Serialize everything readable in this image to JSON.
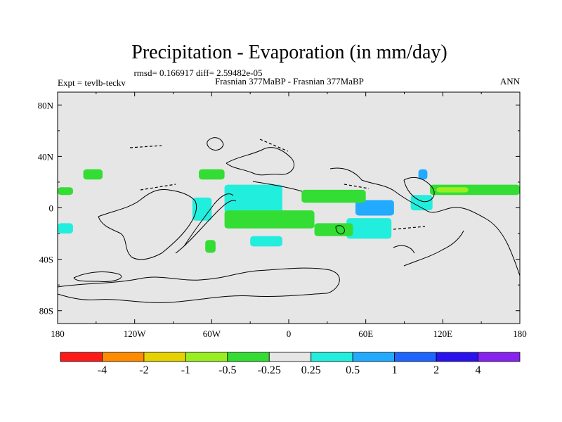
{
  "header": {
    "title": "Precipitation - Evaporation (in mm/day)",
    "stats": "rmsd= 0.166917 diff= 2.59482e-05",
    "left_label": "Expt = tevlb-teckv",
    "center_label": "Frasnian 377MaBP - Frasnian 377MaBP",
    "right_label": "ANN"
  },
  "chart_data": {
    "type": "heatmap",
    "xlim": [
      -180,
      180
    ],
    "ylim": [
      -90,
      90
    ],
    "lat_ticks": [
      "80N",
      "40N",
      "0",
      "40S",
      "80S"
    ],
    "lat_tick_values": [
      80,
      40,
      0,
      -40,
      -80
    ],
    "lon_ticks": [
      "180",
      "120W",
      "60W",
      "0",
      "60E",
      "120E",
      "180"
    ],
    "lon_tick_values": [
      -180,
      -120,
      -60,
      0,
      60,
      120,
      180
    ],
    "colorbar": {
      "colors": [
        "#ff1a1a",
        "#ff8c00",
        "#e6d200",
        "#99ee22",
        "#33dd33",
        "#e6e6e6",
        "#22eedd",
        "#22aaff",
        "#1e64ff",
        "#2a12ee",
        "#8822ee"
      ],
      "labels": [
        "-4",
        "-2",
        "-1",
        "-0.5",
        "-0.25",
        "0.25",
        "0.5",
        "1",
        "2",
        "4"
      ]
    },
    "background_color": "#e6e6e6",
    "anomaly_regions": [
      {
        "level": "0.25 to 0.5",
        "lon": [
          -180,
          -168
        ],
        "lat": [
          -20,
          -12
        ]
      },
      {
        "level": "0.25 to 0.5",
        "lon": [
          -75,
          -60
        ],
        "lat": [
          -10,
          8
        ]
      },
      {
        "level": "0.25 to 0.5",
        "lon": [
          -50,
          -5
        ],
        "lat": [
          -4,
          18
        ]
      },
      {
        "level": "0.25 to 0.5",
        "lon": [
          -30,
          -5
        ],
        "lat": [
          -30,
          -22
        ]
      },
      {
        "level": "0.25 to 0.5",
        "lon": [
          45,
          80
        ],
        "lat": [
          -24,
          -8
        ]
      },
      {
        "level": "0.25 to 0.5",
        "lon": [
          95,
          112
        ],
        "lat": [
          -2,
          10
        ]
      },
      {
        "level": "0.5 to 1",
        "lon": [
          52,
          82
        ],
        "lat": [
          -6,
          6
        ]
      },
      {
        "level": "0.5 to 1",
        "lon": [
          101,
          108
        ],
        "lat": [
          22,
          30
        ]
      },
      {
        "level": "-0.25 to -0.5",
        "lon": [
          -180,
          -168
        ],
        "lat": [
          10,
          16
        ]
      },
      {
        "level": "-0.25 to -0.5",
        "lon": [
          -160,
          -145
        ],
        "lat": [
          22,
          30
        ]
      },
      {
        "level": "-0.25 to -0.5",
        "lon": [
          -70,
          -50
        ],
        "lat": [
          22,
          30
        ]
      },
      {
        "level": "-0.25 to -0.5",
        "lon": [
          -50,
          20
        ],
        "lat": [
          -16,
          -2
        ]
      },
      {
        "level": "-0.25 to -0.5",
        "lon": [
          -65,
          -57
        ],
        "lat": [
          -35,
          -25
        ]
      },
      {
        "level": "-0.25 to -0.5",
        "lon": [
          10,
          60
        ],
        "lat": [
          4,
          14
        ]
      },
      {
        "level": "-0.25 to -0.5",
        "lon": [
          110,
          180
        ],
        "lat": [
          10,
          18
        ]
      },
      {
        "level": "-0.25 to -0.5",
        "lon": [
          20,
          50
        ],
        "lat": [
          -22,
          -12
        ]
      },
      {
        "level": "-0.5 to -1",
        "lon": [
          115,
          140
        ],
        "lat": [
          12,
          16
        ]
      }
    ]
  }
}
